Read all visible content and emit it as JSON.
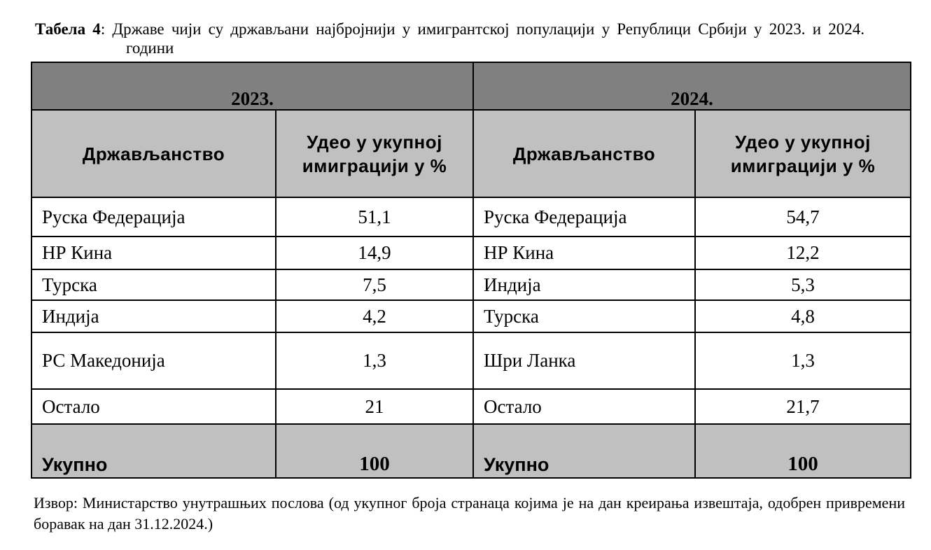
{
  "caption": {
    "label": "Табела 4",
    "text": ": Државе чији су држављани најбројнији у имигрантској популацији у Републици Србији у 2023. и 2024. години"
  },
  "table": {
    "years": [
      "2023.",
      "2024."
    ],
    "columns": [
      "Држављанство",
      "Удео у укупној имиграцији у %",
      "Држављанство",
      "Удео у укупној имиграцији у %"
    ],
    "rows": [
      [
        "Руска Федерација",
        "51,1",
        "Руска Федерација",
        "54,7"
      ],
      [
        "НР Кина",
        "14,9",
        "НР Кина",
        "12,2"
      ],
      [
        "Турска",
        "7,5",
        "Индија",
        "5,3"
      ],
      [
        "Индија",
        "4,2",
        "Турска",
        "4,8"
      ],
      [
        "РС Македонија",
        "1,3",
        "Шри Ланка",
        "1,3"
      ],
      [
        "Остало",
        "21",
        "Остало",
        "21,7"
      ]
    ],
    "total": [
      "Укупно",
      "100",
      "Укупно",
      "100"
    ]
  },
  "source": "Извор: Министарство унутрашњих послова (од укупног броја странаца којима је на дан креирања извештаја, одобрен привремени боравак на дан 31.12.2024.)"
}
